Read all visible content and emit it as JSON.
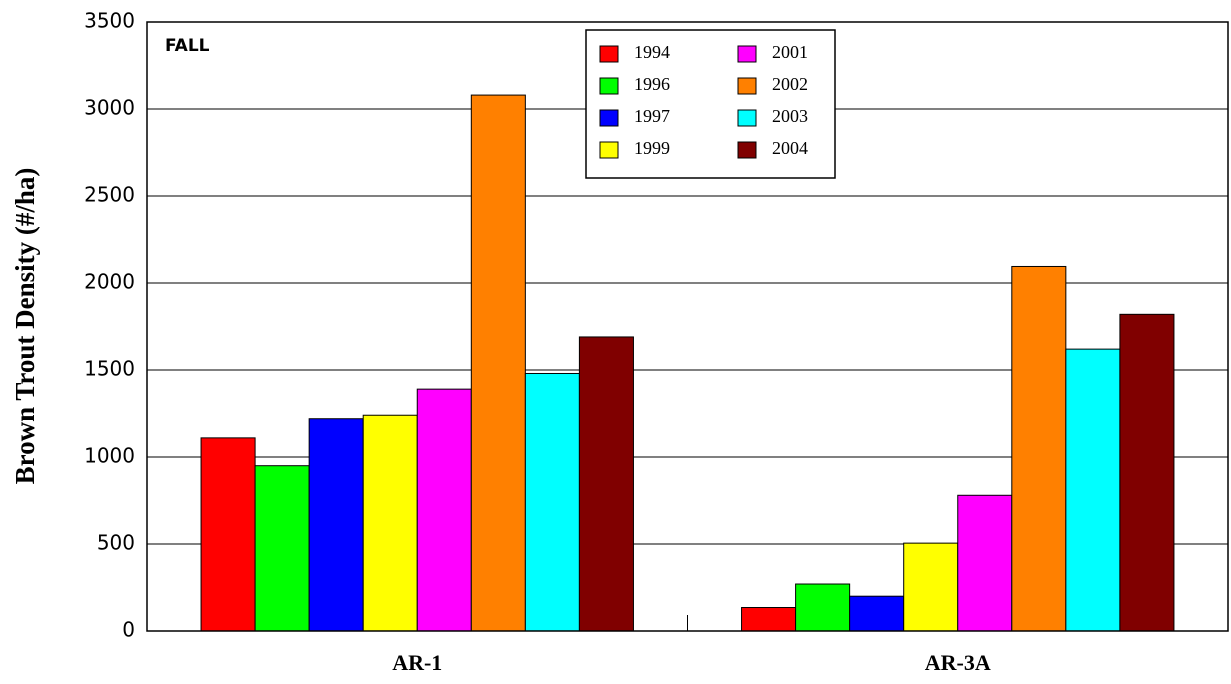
{
  "chart_data": {
    "type": "bar",
    "ylabel": "Brown Trout Density (#/ha)",
    "annotation": "FALL",
    "categories": [
      "AR-1",
      "AR-3A"
    ],
    "series": [
      {
        "name": "1994",
        "color": "#ff0000",
        "values": [
          1110,
          135
        ]
      },
      {
        "name": "1996",
        "color": "#00ff00",
        "values": [
          950,
          270
        ]
      },
      {
        "name": "1997",
        "color": "#0000ff",
        "values": [
          1220,
          200
        ]
      },
      {
        "name": "1999",
        "color": "#ffff00",
        "values": [
          1240,
          505
        ]
      },
      {
        "name": "2001",
        "color": "#ff00ff",
        "values": [
          1390,
          780
        ]
      },
      {
        "name": "2002",
        "color": "#ff8000",
        "values": [
          3080,
          2095
        ]
      },
      {
        "name": "2003",
        "color": "#00ffff",
        "values": [
          1480,
          1620
        ]
      },
      {
        "name": "2004",
        "color": "#800000",
        "values": [
          1690,
          1820
        ]
      }
    ],
    "ylim": [
      0,
      3500
    ],
    "yticks": [
      0,
      500,
      1000,
      1500,
      2000,
      2500,
      3000,
      3500
    ],
    "grid": true
  }
}
